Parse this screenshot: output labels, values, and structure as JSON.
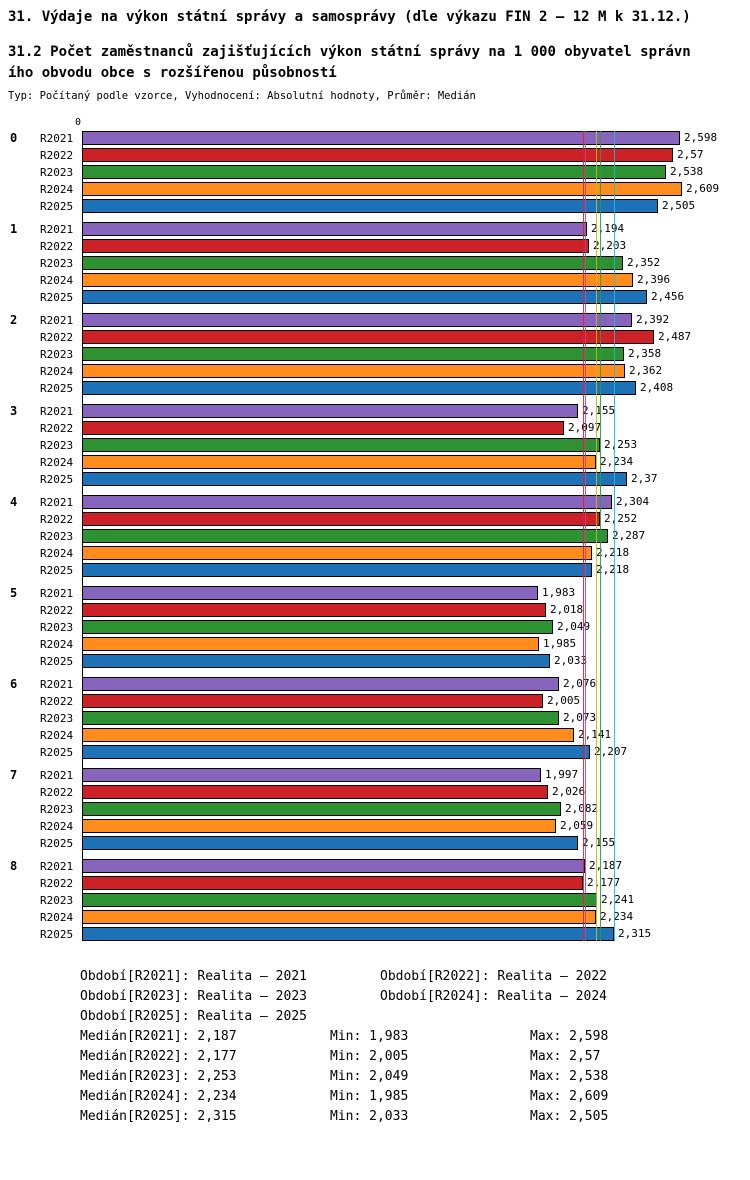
{
  "header": {
    "title": "31. Výdaje na výkon státní správy a samosprávy (dle výkazu FIN 2 – 12 M k 31.12.)",
    "subtitle_line1": "31.2 Počet zaměstnanců zajišťujících výkon státní správy na 1 000 obyvatel správn",
    "subtitle_line2": "ího obvodu obce s rozšířenou působností",
    "type_line": "Typ: Počítaný podle vzorce, Vyhodnocení: Absolutní hodnoty, Průměr: Medián"
  },
  "chart_data": {
    "type": "bar",
    "orientation": "horizontal",
    "title": "31.2 Počet zaměstnanců zajišťujících výkon státní správy na 1 000 obyvatel správního obvodu obce s rozšířenou působností",
    "axis_origin_label": "0",
    "xlim": [
      0,
      2.72
    ],
    "grid": false,
    "categories": [
      "0",
      "1",
      "2",
      "3",
      "4",
      "5",
      "6",
      "7",
      "8"
    ],
    "series": [
      {
        "name": "R2021",
        "values": [
          2.598,
          2.194,
          2.392,
          2.155,
          2.304,
          1.983,
          2.076,
          1.997,
          2.187
        ]
      },
      {
        "name": "R2022",
        "values": [
          2.57,
          2.203,
          2.487,
          2.097,
          2.252,
          2.018,
          2.005,
          2.026,
          2.177
        ]
      },
      {
        "name": "R2023",
        "values": [
          2.538,
          2.352,
          2.358,
          2.253,
          2.287,
          2.049,
          2.073,
          2.082,
          2.241
        ]
      },
      {
        "name": "R2024",
        "values": [
          2.609,
          2.396,
          2.362,
          2.234,
          2.218,
          1.985,
          2.141,
          2.059,
          2.234
        ]
      },
      {
        "name": "R2025",
        "values": [
          2.505,
          2.456,
          2.408,
          2.37,
          2.218,
          2.033,
          2.207,
          2.155,
          2.315
        ]
      }
    ],
    "series_colors": {
      "R2021": "#8765bd",
      "R2022": "#cb2127",
      "R2023": "#2e9132",
      "R2024": "#ff8c1c",
      "R2025": "#1e73b8"
    },
    "medians": {
      "R2021": 2.187,
      "R2022": 2.177,
      "R2023": 2.253,
      "R2024": 2.234,
      "R2025": 2.315
    },
    "median_line_colors": {
      "R2021": "#d4399e",
      "R2022": "#d62728",
      "R2023": "#2ca02c",
      "R2024": "#bcbd22",
      "R2025": "#17becf"
    },
    "stats": {
      "min": {
        "R2021": 1.983,
        "R2022": 2.005,
        "R2023": 2.049,
        "R2024": 1.985,
        "R2025": 2.033
      },
      "max": {
        "R2021": 2.598,
        "R2022": 2.57,
        "R2023": 2.538,
        "R2024": 2.609,
        "R2025": 2.505
      }
    }
  },
  "footer": {
    "period_rows": [
      [
        "Období[R2021]: Realita – 2021",
        "Období[R2022]: Realita – 2022"
      ],
      [
        "Období[R2023]: Realita – 2023",
        "Období[R2024]: Realita – 2024"
      ],
      [
        "Období[R2025]: Realita – 2025"
      ]
    ],
    "median_rows": [
      [
        "Medián[R2021]: 2,187",
        "Min: 1,983",
        "Max: 2,598"
      ],
      [
        "Medián[R2022]: 2,177",
        "Min: 2,005",
        "Max: 2,57"
      ],
      [
        "Medián[R2023]: 2,253",
        "Min: 2,049",
        "Max: 2,538"
      ],
      [
        "Medián[R2024]: 2,234",
        "Min: 1,985",
        "Max: 2,609"
      ],
      [
        "Medián[R2025]: 2,315",
        "Min: 2,033",
        "Max: 2,505"
      ]
    ]
  }
}
